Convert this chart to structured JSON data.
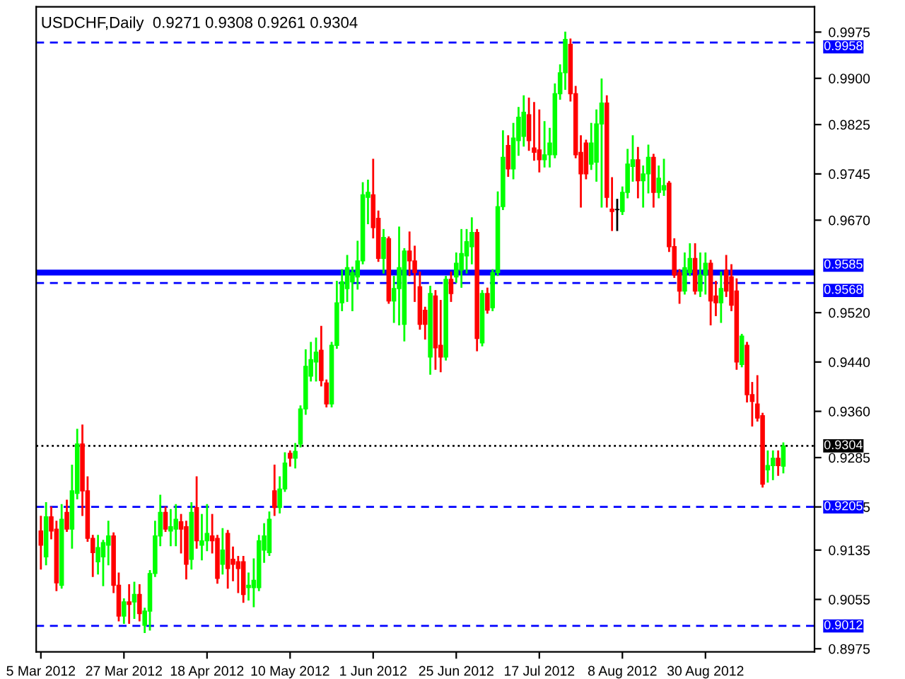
{
  "chart_data": {
    "type": "candlestick",
    "title": "USDCHF,Daily  0.9271 0.9308 0.9261 0.9304",
    "categories": [
      "5 Mar 2012",
      null,
      null,
      null,
      null,
      null,
      null,
      null,
      null,
      null,
      null,
      null,
      null,
      null,
      null,
      null,
      "27 Mar 2012",
      null,
      null,
      null,
      null,
      null,
      null,
      null,
      null,
      null,
      null,
      null,
      null,
      null,
      null,
      null,
      "18 Apr 2012",
      null,
      null,
      null,
      null,
      null,
      null,
      null,
      null,
      null,
      null,
      null,
      null,
      null,
      null,
      null,
      "10 May 2012",
      null,
      null,
      null,
      null,
      null,
      null,
      null,
      null,
      null,
      null,
      null,
      null,
      null,
      null,
      null,
      "1 Jun 2012",
      null,
      null,
      null,
      null,
      null,
      null,
      null,
      null,
      null,
      null,
      null,
      null,
      null,
      null,
      null,
      "25 Jun 2012",
      null,
      null,
      null,
      null,
      null,
      null,
      null,
      null,
      null,
      null,
      null,
      null,
      null,
      null,
      null,
      "17 Jul 2012",
      null,
      null,
      null,
      null,
      null,
      null,
      null,
      null,
      null,
      null,
      null,
      null,
      null,
      null,
      null,
      "8 Aug 2012",
      null,
      null,
      null,
      null,
      null,
      null,
      null,
      null,
      null,
      null,
      null,
      null,
      null,
      null,
      null,
      "30 Aug 2012",
      null,
      null,
      null,
      null,
      null,
      null,
      null,
      null,
      null,
      null,
      null,
      null,
      null,
      null,
      null
    ],
    "ohlc": [
      [
        0.9166,
        0.9189,
        0.9105,
        0.9143
      ],
      [
        0.9124,
        0.9211,
        0.9112,
        0.9189
      ],
      [
        0.9189,
        0.9204,
        0.9154,
        0.9166
      ],
      [
        0.9169,
        0.9181,
        0.907,
        0.9082
      ],
      [
        0.9078,
        0.9208,
        0.9074,
        0.9185
      ],
      [
        0.9196,
        0.9215,
        0.9166,
        0.9169
      ],
      [
        0.9169,
        0.9272,
        0.9139,
        0.9231
      ],
      [
        0.9227,
        0.933,
        0.9219,
        0.9307
      ],
      [
        0.9307,
        0.9337,
        0.9192,
        0.9231
      ],
      [
        0.9231,
        0.9253,
        0.915,
        0.9154
      ],
      [
        0.9154,
        0.9158,
        0.9093,
        0.9131
      ],
      [
        0.9116,
        0.9158,
        0.9097,
        0.9139
      ],
      [
        0.9124,
        0.915,
        0.9078,
        0.9147
      ],
      [
        0.9143,
        0.9181,
        0.9112,
        0.9158
      ],
      [
        0.9158,
        0.9162,
        0.9067,
        0.9078
      ],
      [
        0.9078,
        0.9097,
        0.9021,
        0.9028
      ],
      [
        0.9028,
        0.9055,
        0.9017,
        0.9051
      ],
      [
        0.9051,
        0.9078,
        0.9017,
        0.9047
      ],
      [
        0.9051,
        0.9082,
        0.9025,
        0.9063
      ],
      [
        0.9063,
        0.9078,
        0.9021,
        0.9032
      ],
      [
        0.9013,
        0.904,
        0.9002,
        0.9036
      ],
      [
        0.9036,
        0.9101,
        0.9006,
        0.9097
      ],
      [
        0.9097,
        0.9181,
        0.9093,
        0.9158
      ],
      [
        0.9158,
        0.9223,
        0.9143,
        0.9196
      ],
      [
        0.9196,
        0.9204,
        0.9166,
        0.9169
      ],
      [
        0.9166,
        0.92,
        0.9143,
        0.9173
      ],
      [
        0.9169,
        0.9208,
        0.9143,
        0.9185
      ],
      [
        0.9181,
        0.9192,
        0.9131,
        0.9169
      ],
      [
        0.9173,
        0.9181,
        0.9089,
        0.9112
      ],
      [
        0.912,
        0.9211,
        0.9105,
        0.9196
      ],
      [
        0.9204,
        0.9253,
        0.9139,
        0.915
      ],
      [
        0.9143,
        0.9192,
        0.912,
        0.915
      ],
      [
        0.915,
        0.9208,
        0.9135,
        0.9162
      ],
      [
        0.9158,
        0.9192,
        0.9131,
        0.915
      ],
      [
        0.9154,
        0.9158,
        0.9082,
        0.9089
      ],
      [
        0.9112,
        0.9169,
        0.9097,
        0.9135
      ],
      [
        0.9162,
        0.9166,
        0.9074,
        0.9105
      ],
      [
        0.912,
        0.9139,
        0.9086,
        0.9112
      ],
      [
        0.9116,
        0.9124,
        0.9067,
        0.9105
      ],
      [
        0.9116,
        0.9124,
        0.9051,
        0.9063
      ],
      [
        0.9074,
        0.9097,
        0.9055,
        0.9078
      ],
      [
        0.9074,
        0.912,
        0.9044,
        0.9086
      ],
      [
        0.9074,
        0.9158,
        0.907,
        0.915
      ],
      [
        0.9135,
        0.9177,
        0.9116,
        0.9158
      ],
      [
        0.9131,
        0.9196,
        0.9127,
        0.9185
      ],
      [
        0.9231,
        0.9272,
        0.9192,
        0.9204
      ],
      [
        0.9204,
        0.9253,
        0.9196,
        0.9234
      ],
      [
        0.9234,
        0.9292,
        0.9231,
        0.9276
      ],
      [
        0.9292,
        0.9295,
        0.9272,
        0.9284
      ],
      [
        0.9284,
        0.9307,
        0.9269,
        0.9295
      ],
      [
        0.9307,
        0.9368,
        0.9303,
        0.9364
      ],
      [
        0.9364,
        0.9459,
        0.9356,
        0.9433
      ],
      [
        0.9417,
        0.9471,
        0.941,
        0.9444
      ],
      [
        0.944,
        0.9478,
        0.941,
        0.9456
      ],
      [
        0.9459,
        0.9497,
        0.9402,
        0.941
      ],
      [
        0.9406,
        0.941,
        0.9368,
        0.9372
      ],
      [
        0.9372,
        0.9471,
        0.9368,
        0.9467
      ],
      [
        0.9467,
        0.957,
        0.9463,
        0.9536
      ],
      [
        0.9536,
        0.9589,
        0.9524,
        0.957
      ],
      [
        0.9559,
        0.9612,
        0.9539,
        0.9593
      ],
      [
        0.957,
        0.9593,
        0.9524,
        0.9585
      ],
      [
        0.9578,
        0.9635,
        0.9559,
        0.9604
      ],
      [
        0.9604,
        0.973,
        0.96,
        0.9711
      ],
      [
        0.9707,
        0.9734,
        0.9665,
        0.9715
      ],
      [
        0.9711,
        0.9768,
        0.9642,
        0.9658
      ],
      [
        0.9673,
        0.9684,
        0.9604,
        0.9608
      ],
      [
        0.9608,
        0.9654,
        0.9585,
        0.9642
      ],
      [
        0.964,
        0.9642,
        0.9536,
        0.9539
      ],
      [
        0.9539,
        0.9578,
        0.9505,
        0.9559
      ],
      [
        0.9559,
        0.9658,
        0.9501,
        0.9593
      ],
      [
        0.9501,
        0.9623,
        0.9475,
        0.962
      ],
      [
        0.962,
        0.965,
        0.9581,
        0.9604
      ],
      [
        0.9604,
        0.9627,
        0.9539,
        0.9585
      ],
      [
        0.9562,
        0.9585,
        0.9494,
        0.9501
      ],
      [
        0.9524,
        0.9528,
        0.9478,
        0.9501
      ],
      [
        0.9448,
        0.9562,
        0.9421,
        0.9551
      ],
      [
        0.9547,
        0.9555,
        0.9429,
        0.9463
      ],
      [
        0.9467,
        0.9539,
        0.9425,
        0.9448
      ],
      [
        0.9448,
        0.9578,
        0.9444,
        0.9574
      ],
      [
        0.9574,
        0.9585,
        0.9539,
        0.9551
      ],
      [
        0.9578,
        0.9616,
        0.957,
        0.96
      ],
      [
        0.9589,
        0.9654,
        0.9562,
        0.9616
      ],
      [
        0.9612,
        0.9654,
        0.9585,
        0.9635
      ],
      [
        0.9627,
        0.9673,
        0.96,
        0.965
      ],
      [
        0.965,
        0.9654,
        0.9459,
        0.9478
      ],
      [
        0.9471,
        0.9555,
        0.9467,
        0.9551
      ],
      [
        0.9551,
        0.9559,
        0.952,
        0.9524
      ],
      [
        0.9528,
        0.9589,
        0.9524,
        0.9585
      ],
      [
        0.9585,
        0.9715,
        0.9581,
        0.9692
      ],
      [
        0.9692,
        0.9814,
        0.9688,
        0.9772
      ],
      [
        0.9791,
        0.9806,
        0.9742,
        0.9753
      ],
      [
        0.9753,
        0.9826,
        0.9738,
        0.9803
      ],
      [
        0.9799,
        0.9852,
        0.9776,
        0.9837
      ],
      [
        0.9806,
        0.9871,
        0.9791,
        0.9845
      ],
      [
        0.9841,
        0.9867,
        0.9784,
        0.9799
      ],
      [
        0.9787,
        0.986,
        0.9768,
        0.978
      ],
      [
        0.9784,
        0.9848,
        0.9749,
        0.9768
      ],
      [
        0.9768,
        0.9829,
        0.9757,
        0.9776
      ],
      [
        0.9776,
        0.9818,
        0.9757,
        0.9795
      ],
      [
        0.9776,
        0.989,
        0.9772,
        0.9875
      ],
      [
        0.9875,
        0.9921,
        0.9867,
        0.9909
      ],
      [
        0.9909,
        0.9974,
        0.9883,
        0.9963
      ],
      [
        0.9955,
        0.9963,
        0.9864,
        0.9875
      ],
      [
        0.9875,
        0.9886,
        0.9772,
        0.9776
      ],
      [
        0.978,
        0.9806,
        0.9692,
        0.9745
      ],
      [
        0.9795,
        0.9799,
        0.9738,
        0.9745
      ],
      [
        0.9761,
        0.9826,
        0.9753,
        0.9795
      ],
      [
        0.9764,
        0.9848,
        0.9734,
        0.9826
      ],
      [
        0.9826,
        0.9898,
        0.9692,
        0.986
      ],
      [
        0.986,
        0.9871,
        0.9692,
        0.9707
      ],
      [
        0.9688,
        0.9738,
        0.9654,
        0.9684
      ],
      [
        0.9687,
        0.9703,
        0.9654,
        0.9687
      ],
      [
        0.9684,
        0.9723,
        0.968,
        0.9715
      ],
      [
        0.9715,
        0.9784,
        0.9707,
        0.9761
      ],
      [
        0.9757,
        0.9806,
        0.9734,
        0.9768
      ],
      [
        0.9768,
        0.9787,
        0.9707,
        0.9734
      ],
      [
        0.9734,
        0.9757,
        0.9692,
        0.9745
      ],
      [
        0.9745,
        0.9791,
        0.9715,
        0.9772
      ],
      [
        0.9772,
        0.9776,
        0.9692,
        0.9715
      ],
      [
        0.9715,
        0.9757,
        0.9707,
        0.9738
      ],
      [
        0.9719,
        0.9768,
        0.9711,
        0.9726
      ],
      [
        0.973,
        0.9732,
        0.962,
        0.9627
      ],
      [
        0.9627,
        0.9639,
        0.9578,
        0.9581
      ],
      [
        0.9585,
        0.9589,
        0.9536,
        0.9555
      ],
      [
        0.9555,
        0.9616,
        0.9551,
        0.9593
      ],
      [
        0.9585,
        0.9631,
        0.9581,
        0.9608
      ],
      [
        0.9608,
        0.9631,
        0.9551,
        0.9555
      ],
      [
        0.9555,
        0.9616,
        0.9547,
        0.9581
      ],
      [
        0.9581,
        0.9616,
        0.9551,
        0.96
      ],
      [
        0.96,
        0.9604,
        0.9501,
        0.9539
      ],
      [
        0.9547,
        0.957,
        0.9516,
        0.9536
      ],
      [
        0.9536,
        0.9585,
        0.9505,
        0.9559
      ],
      [
        0.9589,
        0.9612,
        0.9547,
        0.9555
      ],
      [
        0.9578,
        0.9597,
        0.9524,
        0.9532
      ],
      [
        0.9555,
        0.9574,
        0.9429,
        0.944
      ],
      [
        0.9436,
        0.9484,
        0.9433,
        0.9482
      ],
      [
        0.9467,
        0.9471,
        0.9376,
        0.9387
      ],
      [
        0.9387,
        0.9406,
        0.9337,
        0.9376
      ],
      [
        0.9372,
        0.9417,
        0.9345,
        0.9349
      ],
      [
        0.9353,
        0.9356,
        0.9238,
        0.9242
      ],
      [
        0.9265,
        0.9295,
        0.9246,
        0.9272
      ],
      [
        0.9272,
        0.9295,
        0.925,
        0.9284
      ],
      [
        0.9284,
        0.9295,
        0.9257,
        0.9272
      ],
      [
        0.9271,
        0.9308,
        0.9261,
        0.9304
      ]
    ],
    "colors": [
      "#ff0000",
      "#00ff00",
      "#ff0000",
      "#ff0000",
      "#00ff00",
      "#ff0000",
      "#00ff00",
      "#00ff00",
      "#ff0000",
      "#ff0000",
      "#ff0000",
      "#00ff00",
      "#00ff00",
      "#00ff00",
      "#ff0000",
      "#ff0000",
      "#00ff00",
      "#ff0000",
      "#00ff00",
      "#ff0000",
      "#00ff00",
      "#00ff00",
      "#00ff00",
      "#00ff00",
      "#ff0000",
      "#00ff00",
      "#00ff00",
      "#ff0000",
      "#ff0000",
      "#00ff00",
      "#ff0000",
      "#00ff00",
      "#00ff00",
      "#ff0000",
      "#ff0000",
      "#00ff00",
      "#ff0000",
      "#ff0000",
      "#ff0000",
      "#ff0000",
      "#00ff00",
      "#00ff00",
      "#00ff00",
      "#00ff00",
      "#00ff00",
      "#ff0000",
      "#00ff00",
      "#00ff00",
      "#ff0000",
      "#00ff00",
      "#00ff00",
      "#00ff00",
      "#00ff00",
      "#00ff00",
      "#ff0000",
      "#ff0000",
      "#00ff00",
      "#00ff00",
      "#00ff00",
      "#00ff00",
      "#00ff00",
      "#00ff00",
      "#00ff00",
      "#00ff00",
      "#ff0000",
      "#ff0000",
      "#00ff00",
      "#ff0000",
      "#00ff00",
      "#00ff00",
      "#00ff00",
      "#ff0000",
      "#ff0000",
      "#ff0000",
      "#ff0000",
      "#00ff00",
      "#ff0000",
      "#ff0000",
      "#00ff00",
      "#ff0000",
      "#00ff00",
      "#00ff00",
      "#00ff00",
      "#00ff00",
      "#ff0000",
      "#00ff00",
      "#ff0000",
      "#00ff00",
      "#00ff00",
      "#00ff00",
      "#ff0000",
      "#00ff00",
      "#00ff00",
      "#00ff00",
      "#ff0000",
      "#ff0000",
      "#ff0000",
      "#00ff00",
      "#00ff00",
      "#00ff00",
      "#00ff00",
      "#00ff00",
      "#ff0000",
      "#ff0000",
      "#ff0000",
      "#ff0000",
      "#00ff00",
      "#00ff00",
      "#00ff00",
      "#ff0000",
      "#ff0000",
      "#000000",
      "#00ff00",
      "#00ff00",
      "#00ff00",
      "#ff0000",
      "#00ff00",
      "#00ff00",
      "#ff0000",
      "#00ff00",
      "#00ff00",
      "#ff0000",
      "#ff0000",
      "#ff0000",
      "#00ff00",
      "#00ff00",
      "#ff0000",
      "#00ff00",
      "#00ff00",
      "#ff0000",
      "#ff0000",
      "#00ff00",
      "#ff0000",
      "#ff0000",
      "#ff0000",
      "#00ff00",
      "#ff0000",
      "#ff0000",
      "#ff0000",
      "#ff0000",
      "#00ff00",
      "#00ff00",
      "#ff0000",
      "#00ff00"
    ],
    "ylim": [
      0.897,
      1.0016
    ],
    "yticks": [
      0.8975,
      0.9055,
      0.9135,
      0.9205,
      0.9285,
      {
        "value": 0.936,
        "label": "0.9360"
      },
      {
        "value": 0.944,
        "label": "0.9440"
      },
      {
        "value": 0.952,
        "label": "0.9520"
      },
      {
        "value": 0.967,
        "label": "0.9670"
      },
      0.9745,
      0.9825,
      {
        "value": 0.99,
        "label": "0.9900"
      },
      0.9975
    ],
    "ref_lines": [
      {
        "axis": "y",
        "value": 0.9958,
        "label": "0.9958",
        "color": "#0000ff",
        "line_style": "dashed"
      },
      {
        "axis": "y",
        "value": 0.9585,
        "label": "0.9585",
        "color": "#0000ff",
        "line_style": "solid"
      },
      {
        "axis": "y",
        "value": 0.9568,
        "label": "0.9568",
        "color": "#0000ff",
        "line_style": "dashed"
      },
      {
        "axis": "y",
        "value": 0.9304,
        "label": "0.9304",
        "color": "#000000",
        "line_style": "dotted"
      },
      {
        "axis": "y",
        "value": 0.9205,
        "label": "0.9205",
        "color": "#0000ff",
        "line_style": "dashed"
      },
      {
        "axis": "y",
        "value": 0.9012,
        "label": "0.9012",
        "color": "#0000ff",
        "line_style": "dashed"
      }
    ],
    "grid": false
  }
}
